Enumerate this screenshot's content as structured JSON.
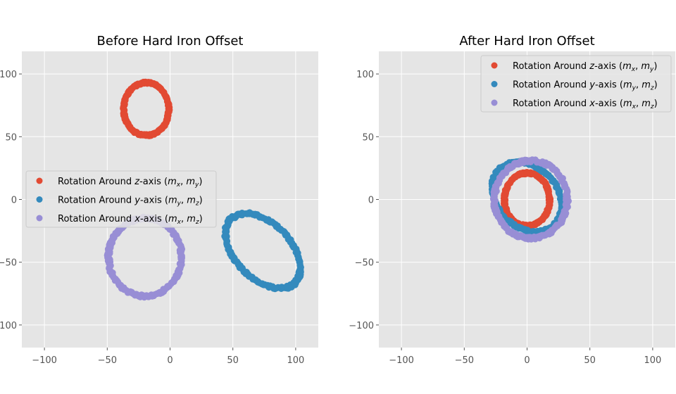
{
  "chart_data": [
    {
      "type": "scatter",
      "title": "Before Hard Iron Offset",
      "xlabel": "",
      "ylabel": "",
      "xlim": [
        -118,
        118
      ],
      "ylim": [
        -118,
        118
      ],
      "xticks": [
        -100,
        -50,
        0,
        50,
        100
      ],
      "yticks": [
        -100,
        -50,
        0,
        50,
        100
      ],
      "xtick_labels": [
        "−100",
        "−50",
        "0",
        "50",
        "100"
      ],
      "ytick_labels": [
        "−100",
        "−50",
        "0",
        "50",
        "100"
      ],
      "grid": true,
      "legend_position": "center-left",
      "series": [
        {
          "name": "Rotation Around z-axis (m_x, m_y)",
          "legend": {
            "a": "Rotation Around ",
            "v": "z",
            "b": "-axis (",
            "s1": "x",
            "s2": "y"
          },
          "color": "#e24a33",
          "ellipse": {
            "cx": -19,
            "cy": 72,
            "rx": 18,
            "ry": 21,
            "angle": 0
          }
        },
        {
          "name": "Rotation Around y-axis (m_y, m_z)",
          "legend": {
            "a": "Rotation Around ",
            "v": "y",
            "b": "-axis (",
            "s1": "y",
            "s2": "z"
          },
          "color": "#348abd",
          "ellipse": {
            "cx": 74,
            "cy": -41,
            "rx": 36,
            "ry": 22,
            "angle": -45
          }
        },
        {
          "name": "Rotation Around x-axis (m_x, m_z)",
          "legend": {
            "a": "Rotation Around ",
            "v": "x",
            "b": "-axis (",
            "s1": "x",
            "s2": "z"
          },
          "color": "#988ed5",
          "ellipse": {
            "cx": -20,
            "cy": -46,
            "rx": 29,
            "ry": 31,
            "angle": 0
          }
        }
      ]
    },
    {
      "type": "scatter",
      "title": "After Hard Iron Offset",
      "xlabel": "",
      "ylabel": "",
      "xlim": [
        -118,
        118
      ],
      "ylim": [
        -118,
        118
      ],
      "xticks": [
        -100,
        -50,
        0,
        50,
        100
      ],
      "yticks": [
        -100,
        -50,
        0,
        50,
        100
      ],
      "xtick_labels": [
        "−100",
        "−50",
        "0",
        "50",
        "100"
      ],
      "ytick_labels": [
        "−100",
        "−50",
        "0",
        "50",
        "100"
      ],
      "grid": true,
      "legend_position": "upper-right",
      "series": [
        {
          "name": "Rotation Around z-axis (m_x, m_y)",
          "legend": {
            "a": "Rotation Around ",
            "v": "z",
            "b": "-axis (",
            "s1": "x",
            "s2": "y"
          },
          "color": "#e24a33",
          "ellipse": {
            "cx": 0,
            "cy": 0,
            "rx": 18,
            "ry": 21,
            "angle": 0
          }
        },
        {
          "name": "Rotation Around y-axis (m_y, m_z)",
          "legend": {
            "a": "Rotation Around ",
            "v": "y",
            "b": "-axis (",
            "s1": "y",
            "s2": "z"
          },
          "color": "#348abd",
          "ellipse": {
            "cx": 0,
            "cy": 2,
            "rx": 31,
            "ry": 24,
            "angle": -45
          }
        },
        {
          "name": "Rotation Around x-axis (m_x, m_z)",
          "legend": {
            "a": "Rotation Around ",
            "v": "x",
            "b": "-axis (",
            "s1": "x",
            "s2": "z"
          },
          "color": "#988ed5",
          "ellipse": {
            "cx": 3,
            "cy": 0,
            "rx": 29,
            "ry": 31,
            "angle": 0
          }
        }
      ]
    }
  ]
}
